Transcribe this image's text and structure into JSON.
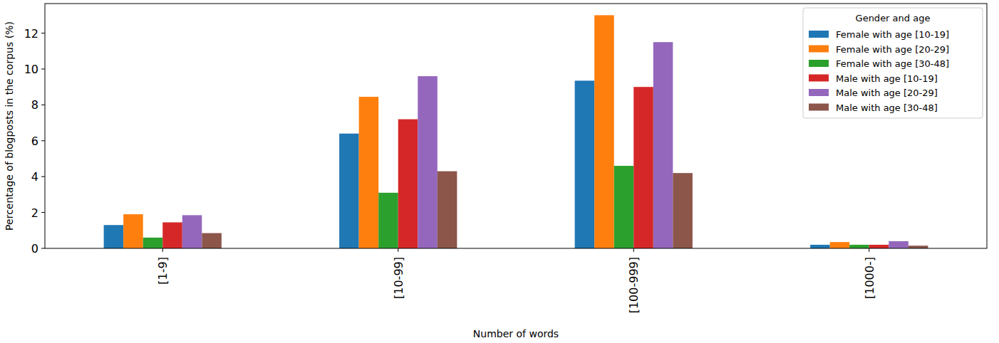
{
  "chart_data": {
    "type": "bar",
    "x_label": "Number of words",
    "y_label": "Percentage of blogposts in the corpus (%)",
    "categories": [
      "[1-9]",
      "[10-99]",
      "[100-999]",
      "[1000-]"
    ],
    "series": [
      {
        "name": "Female with age [10-19]",
        "color": "#1f77b4",
        "values": [
          1.3,
          6.4,
          9.35,
          0.2
        ]
      },
      {
        "name": "Female with age [20-29]",
        "color": "#ff7f0e",
        "values": [
          1.9,
          8.45,
          13.0,
          0.35
        ]
      },
      {
        "name": "Female with age [30-48]",
        "color": "#2ca02c",
        "values": [
          0.6,
          3.1,
          4.6,
          0.2
        ]
      },
      {
        "name": "Male with age [10-19]",
        "color": "#d62728",
        "values": [
          1.45,
          7.2,
          9.0,
          0.2
        ]
      },
      {
        "name": "Male with age [20-29]",
        "color": "#9467bd",
        "values": [
          1.85,
          9.6,
          11.5,
          0.4
        ]
      },
      {
        "name": "Male with age [30-48]",
        "color": "#8c564b",
        "values": [
          0.85,
          4.3,
          4.2,
          0.15
        ]
      }
    ],
    "legend_title": "Gender and age",
    "ylim": [
      0,
      13.65
    ],
    "yticks": [
      0,
      2,
      4,
      6,
      8,
      10,
      12
    ],
    "grid": false,
    "legend": "upper right"
  }
}
